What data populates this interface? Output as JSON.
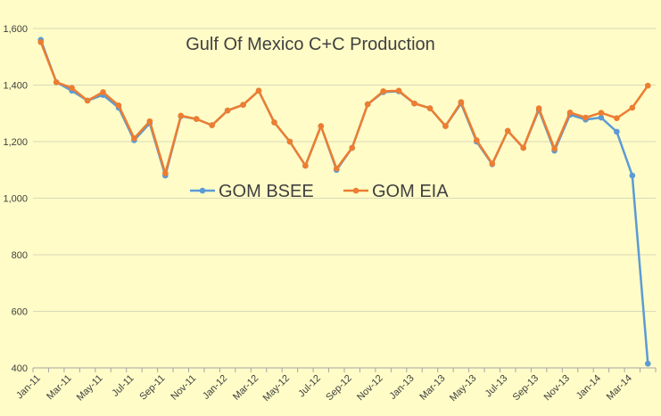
{
  "chart_data": {
    "type": "line",
    "title": "Gulf Of Mexico C+C Production",
    "xlabel": "",
    "ylabel": "",
    "ylim": [
      400,
      1600
    ],
    "yticks": [
      400,
      600,
      800,
      1000,
      1200,
      1400,
      1600
    ],
    "ytick_labels": [
      "400",
      "600",
      "800",
      "1,000",
      "1,200",
      "1,400",
      "1,600"
    ],
    "grid": true,
    "legend": "center",
    "x": [
      "Jan-11",
      "Feb-11",
      "Mar-11",
      "Apr-11",
      "May-11",
      "Jun-11",
      "Jul-11",
      "Aug-11",
      "Sep-11",
      "Oct-11",
      "Nov-11",
      "Dec-11",
      "Jan-12",
      "Feb-12",
      "Mar-12",
      "Apr-12",
      "May-12",
      "Jun-12",
      "Jul-12",
      "Aug-12",
      "Sep-12",
      "Oct-12",
      "Nov-12",
      "Dec-12",
      "Jan-13",
      "Feb-13",
      "Mar-13",
      "Apr-13",
      "May-13",
      "Jun-13",
      "Jul-13",
      "Aug-13",
      "Sep-13",
      "Oct-13",
      "Nov-13",
      "Dec-13",
      "Jan-14",
      "Feb-14",
      "Mar-14",
      "Apr-14"
    ],
    "xtick_labels": [
      "Jan-11",
      "Mar-11",
      "May-11",
      "Jul-11",
      "Sep-11",
      "Nov-11",
      "Jan-12",
      "Mar-12",
      "May-12",
      "Jul-12",
      "Sep-12",
      "Nov-12",
      "Jan-13",
      "Mar-13",
      "May-13",
      "Jul-13",
      "Sep-13",
      "Nov-13",
      "Jan-14",
      "Mar-14"
    ],
    "series": [
      {
        "name": "GOM BSEE",
        "color": "#5b9bd5",
        "values": [
          1560,
          1410,
          1380,
          1345,
          1365,
          1320,
          1205,
          1265,
          1080,
          1290,
          1280,
          1258,
          1310,
          1330,
          1380,
          1268,
          1200,
          1115,
          1255,
          1100,
          1178,
          1332,
          1375,
          1378,
          1335,
          1318,
          1255,
          1335,
          1200,
          1120,
          1238,
          1178,
          1312,
          1168,
          1295,
          1278,
          1285,
          1235,
          1080,
          415
        ]
      },
      {
        "name": "GOM EIA",
        "color": "#ed7d31",
        "values": [
          1552,
          1410,
          1390,
          1345,
          1375,
          1328,
          1212,
          1272,
          1088,
          1292,
          1280,
          1258,
          1310,
          1330,
          1380,
          1268,
          1200,
          1115,
          1255,
          1105,
          1178,
          1332,
          1378,
          1380,
          1335,
          1318,
          1255,
          1340,
          1205,
          1122,
          1238,
          1178,
          1318,
          1175,
          1303,
          1285,
          1302,
          1283,
          1320,
          1398
        ]
      }
    ]
  }
}
